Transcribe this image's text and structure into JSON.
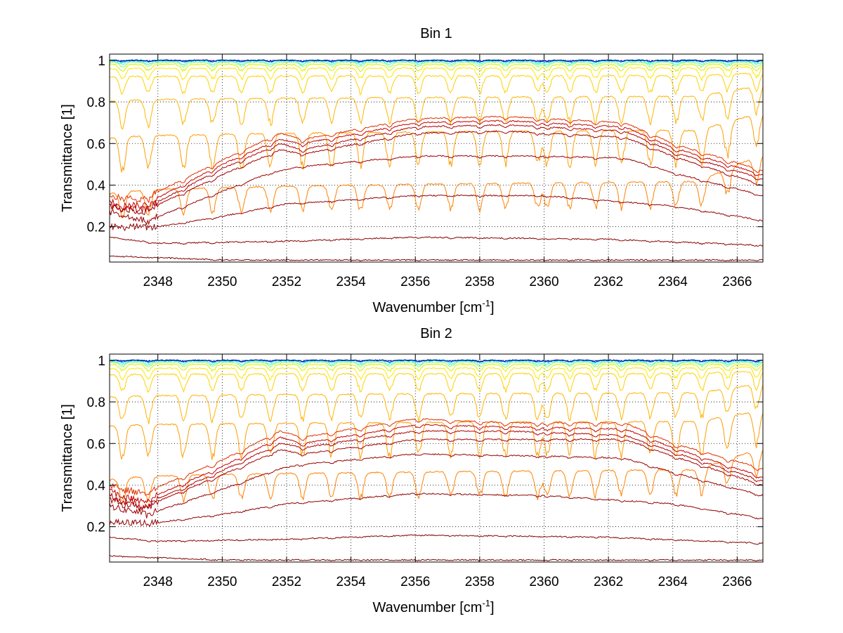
{
  "figure": {
    "background": "#ffffff",
    "panel_count": 2
  },
  "chart_data": [
    {
      "type": "line",
      "title": "Bin 1",
      "xlabel": "Wavenumber [cm",
      "xlabel_superscript": "-1",
      "xlabel_suffix": "]",
      "ylabel": "Transmittance [1]",
      "xlim": [
        2346.5,
        2366.8
      ],
      "ylim": [
        0.03,
        1.03
      ],
      "x_ticks": [
        2348,
        2350,
        2352,
        2354,
        2356,
        2358,
        2360,
        2362,
        2364,
        2366
      ],
      "x_tick_labels": [
        "2348",
        "2350",
        "2352",
        "2354",
        "2356",
        "2358",
        "2360",
        "2362",
        "2364",
        "2366"
      ],
      "y_ticks": [
        0.2,
        0.4,
        0.6,
        0.8,
        1
      ],
      "y_tick_labels": [
        "0.2",
        "0.4",
        "0.6",
        "0.8",
        "1"
      ],
      "grid": true,
      "grid_style": "dotted",
      "absorption_line_positions": [
        2346.9,
        2347.7,
        2348.8,
        2349.7,
        2350.6,
        2351.5,
        2352.5,
        2353.4,
        2354.3,
        2355.2,
        2356.1,
        2357.1,
        2358.0,
        2358.8,
        2359.8,
        2360.1,
        2360.8,
        2361.6,
        2362.4,
        2363.3,
        2364.1,
        2364.9,
        2365.7,
        2366.6
      ],
      "series_colormap": "jet (dark red = lowest transmittance, dark blue = highest)",
      "series_low_transmittance": [
        {
          "color": "#7f0000",
          "values": [
            [
              2346.5,
              0.06
            ],
            [
              2350,
              0.04
            ],
            [
              2356,
              0.04
            ],
            [
              2366.8,
              0.04
            ]
          ]
        },
        {
          "color": "#870000",
          "values": [
            [
              2346.5,
              0.15
            ],
            [
              2348,
              0.12
            ],
            [
              2352,
              0.13
            ],
            [
              2356,
              0.15
            ],
            [
              2362,
              0.14
            ],
            [
              2366.8,
              0.11
            ]
          ]
        },
        {
          "color": "#900000",
          "values": [
            [
              2346.5,
              0.2
            ],
            [
              2348,
              0.2
            ],
            [
              2350,
              0.25
            ],
            [
              2352,
              0.31
            ],
            [
              2356,
              0.35
            ],
            [
              2360,
              0.35
            ],
            [
              2364,
              0.3
            ],
            [
              2366.8,
              0.23
            ]
          ]
        },
        {
          "color": "#990000",
          "values": [
            [
              2346.5,
              0.27
            ],
            [
              2347.7,
              0.23
            ],
            [
              2350,
              0.37
            ],
            [
              2351.5,
              0.46
            ],
            [
              2352.5,
              0.49
            ],
            [
              2356,
              0.54
            ],
            [
              2360,
              0.54
            ],
            [
              2362.5,
              0.53
            ],
            [
              2364,
              0.46
            ],
            [
              2366.8,
              0.35
            ]
          ]
        },
        {
          "color": "#a30000",
          "values": [
            [
              2346.5,
              0.3
            ],
            [
              2347.5,
              0.27
            ],
            [
              2350,
              0.45
            ],
            [
              2351.8,
              0.57
            ],
            [
              2352.5,
              0.55
            ],
            [
              2356,
              0.65
            ],
            [
              2358.8,
              0.66
            ],
            [
              2362.5,
              0.63
            ],
            [
              2364,
              0.54
            ],
            [
              2366.8,
              0.4
            ]
          ]
        },
        {
          "color": "#b00000",
          "values": [
            [
              2346.5,
              0.3
            ],
            [
              2347.5,
              0.28
            ],
            [
              2350,
              0.48
            ],
            [
              2351.8,
              0.6
            ],
            [
              2352.5,
              0.57
            ],
            [
              2356,
              0.68
            ],
            [
              2358.8,
              0.69
            ],
            [
              2362.5,
              0.66
            ],
            [
              2364,
              0.56
            ],
            [
              2366.8,
              0.43
            ]
          ]
        },
        {
          "color": "#c50000",
          "values": [
            [
              2346.5,
              0.32
            ],
            [
              2347.5,
              0.3
            ],
            [
              2350,
              0.5
            ],
            [
              2351.8,
              0.62
            ],
            [
              2352.5,
              0.6
            ],
            [
              2356,
              0.7
            ],
            [
              2358.8,
              0.71
            ],
            [
              2362.5,
              0.68
            ],
            [
              2364,
              0.58
            ],
            [
              2366.8,
              0.45
            ]
          ]
        },
        {
          "color": "#e03000",
          "values": [
            [
              2346.5,
              0.35
            ],
            [
              2347.5,
              0.33
            ],
            [
              2350,
              0.52
            ],
            [
              2351.8,
              0.65
            ],
            [
              2352.5,
              0.62
            ],
            [
              2356,
              0.72
            ],
            [
              2358.8,
              0.73
            ],
            [
              2362.5,
              0.7
            ],
            [
              2364,
              0.6
            ],
            [
              2366.8,
              0.47
            ]
          ]
        }
      ],
      "series_high_transmittance": [
        {
          "color": "#ff8000",
          "baseline": 0.35,
          "depth": 0.12,
          "end_baseline": 0.55
        },
        {
          "color": "#ff9c00",
          "baseline": 0.62,
          "depth": 0.16,
          "end_baseline": 0.75
        },
        {
          "color": "#ffb400",
          "baseline": 0.8,
          "depth": 0.12,
          "end_baseline": 0.88
        },
        {
          "color": "#ffcf00",
          "baseline": 0.92,
          "depth": 0.08,
          "end_baseline": 0.94
        },
        {
          "color": "#ffe600",
          "baseline": 0.96,
          "depth": 0.05,
          "end_baseline": 0.97
        },
        {
          "color": "#d8f000",
          "baseline": 0.98,
          "depth": 0.03,
          "end_baseline": 0.98
        },
        {
          "color": "#90ff60",
          "baseline": 0.99,
          "depth": 0.02,
          "end_baseline": 0.99
        },
        {
          "color": "#40ffbf",
          "baseline": 0.995,
          "depth": 0.015,
          "end_baseline": 0.995
        },
        {
          "color": "#00d8ff",
          "baseline": 1.0,
          "depth": 0.01,
          "end_baseline": 1.0
        },
        {
          "color": "#0060ff",
          "baseline": 1.0,
          "depth": 0.006,
          "end_baseline": 1.0
        },
        {
          "color": "#00008f",
          "baseline": 1.0,
          "depth": 0.004,
          "end_baseline": 1.0
        }
      ]
    },
    {
      "type": "line",
      "title": "Bin 2",
      "xlabel": "Wavenumber [cm",
      "xlabel_superscript": "-1",
      "xlabel_suffix": "]",
      "ylabel": "Transmittance [1]",
      "xlim": [
        2346.5,
        2366.8
      ],
      "ylim": [
        0.03,
        1.03
      ],
      "x_ticks": [
        2348,
        2350,
        2352,
        2354,
        2356,
        2358,
        2360,
        2362,
        2364,
        2366
      ],
      "x_tick_labels": [
        "2348",
        "2350",
        "2352",
        "2354",
        "2356",
        "2358",
        "2360",
        "2362",
        "2364",
        "2366"
      ],
      "y_ticks": [
        0.2,
        0.4,
        0.6,
        0.8,
        1
      ],
      "y_tick_labels": [
        "0.2",
        "0.4",
        "0.6",
        "0.8",
        "1"
      ],
      "grid": true,
      "grid_style": "dotted",
      "absorption_line_positions": [
        2346.9,
        2347.7,
        2348.8,
        2349.7,
        2350.6,
        2351.5,
        2352.5,
        2353.4,
        2354.3,
        2355.2,
        2356.1,
        2357.1,
        2358.0,
        2358.8,
        2359.8,
        2360.1,
        2360.8,
        2361.6,
        2362.4,
        2363.3,
        2364.1,
        2364.9,
        2365.7,
        2366.6
      ],
      "series_colormap": "jet (dark red = lowest transmittance, dark blue = highest)",
      "series_low_transmittance": [
        {
          "color": "#7f0000",
          "values": [
            [
              2346.5,
              0.06
            ],
            [
              2350,
              0.04
            ],
            [
              2356,
              0.04
            ],
            [
              2366.8,
              0.04
            ]
          ]
        },
        {
          "color": "#870000",
          "values": [
            [
              2346.5,
              0.15
            ],
            [
              2348,
              0.13
            ],
            [
              2352,
              0.14
            ],
            [
              2356,
              0.16
            ],
            [
              2362,
              0.15
            ],
            [
              2366.8,
              0.12
            ]
          ]
        },
        {
          "color": "#900000",
          "values": [
            [
              2346.5,
              0.22
            ],
            [
              2348,
              0.22
            ],
            [
              2350,
              0.26
            ],
            [
              2352,
              0.31
            ],
            [
              2356,
              0.36
            ],
            [
              2360,
              0.35
            ],
            [
              2364,
              0.31
            ],
            [
              2366.8,
              0.24
            ]
          ]
        },
        {
          "color": "#990000",
          "values": [
            [
              2346.5,
              0.3
            ],
            [
              2347.7,
              0.26
            ],
            [
              2350,
              0.38
            ],
            [
              2351.8,
              0.48
            ],
            [
              2352.5,
              0.5
            ],
            [
              2356,
              0.55
            ],
            [
              2360,
              0.54
            ],
            [
              2362.5,
              0.53
            ],
            [
              2364,
              0.46
            ],
            [
              2366.8,
              0.35
            ]
          ]
        },
        {
          "color": "#a30000",
          "values": [
            [
              2346.5,
              0.33
            ],
            [
              2347.5,
              0.29
            ],
            [
              2350,
              0.45
            ],
            [
              2351.8,
              0.57
            ],
            [
              2352.5,
              0.55
            ],
            [
              2356,
              0.62
            ],
            [
              2358.8,
              0.62
            ],
            [
              2362.5,
              0.62
            ],
            [
              2364,
              0.54
            ],
            [
              2366.8,
              0.4
            ]
          ]
        },
        {
          "color": "#b00000",
          "values": [
            [
              2346.5,
              0.35
            ],
            [
              2347.5,
              0.3
            ],
            [
              2350,
              0.47
            ],
            [
              2351.8,
              0.6
            ],
            [
              2352.5,
              0.58
            ],
            [
              2356,
              0.66
            ],
            [
              2358.8,
              0.66
            ],
            [
              2362.5,
              0.64
            ],
            [
              2364,
              0.56
            ],
            [
              2366.8,
              0.42
            ]
          ]
        },
        {
          "color": "#c50000",
          "values": [
            [
              2346.5,
              0.37
            ],
            [
              2347.5,
              0.32
            ],
            [
              2350,
              0.49
            ],
            [
              2351.8,
              0.63
            ],
            [
              2352.5,
              0.6
            ],
            [
              2356,
              0.69
            ],
            [
              2358.8,
              0.68
            ],
            [
              2362.5,
              0.67
            ],
            [
              2364,
              0.58
            ],
            [
              2366.8,
              0.44
            ]
          ]
        },
        {
          "color": "#e03000",
          "values": [
            [
              2346.5,
              0.4
            ],
            [
              2347.5,
              0.36
            ],
            [
              2350,
              0.52
            ],
            [
              2351.8,
              0.66
            ],
            [
              2352.5,
              0.63
            ],
            [
              2356,
              0.72
            ],
            [
              2358.8,
              0.7
            ],
            [
              2362.5,
              0.7
            ],
            [
              2364,
              0.6
            ],
            [
              2366.8,
              0.48
            ]
          ]
        }
      ],
      "series_high_transmittance": [
        {
          "color": "#ff8000",
          "baseline": 0.42,
          "depth": 0.12,
          "end_baseline": 0.58
        },
        {
          "color": "#ff9c00",
          "baseline": 0.68,
          "depth": 0.16,
          "end_baseline": 0.76
        },
        {
          "color": "#ffb400",
          "baseline": 0.82,
          "depth": 0.12,
          "end_baseline": 0.89
        },
        {
          "color": "#ffcf00",
          "baseline": 0.93,
          "depth": 0.08,
          "end_baseline": 0.95
        },
        {
          "color": "#ffe600",
          "baseline": 0.96,
          "depth": 0.05,
          "end_baseline": 0.97
        },
        {
          "color": "#d8f000",
          "baseline": 0.98,
          "depth": 0.03,
          "end_baseline": 0.98
        },
        {
          "color": "#90ff60",
          "baseline": 0.99,
          "depth": 0.02,
          "end_baseline": 0.99
        },
        {
          "color": "#40ffbf",
          "baseline": 0.995,
          "depth": 0.015,
          "end_baseline": 0.995
        },
        {
          "color": "#00d8ff",
          "baseline": 1.0,
          "depth": 0.01,
          "end_baseline": 1.0
        },
        {
          "color": "#0060ff",
          "baseline": 1.0,
          "depth": 0.006,
          "end_baseline": 1.0
        },
        {
          "color": "#00008f",
          "baseline": 1.0,
          "depth": 0.004,
          "end_baseline": 1.0
        }
      ]
    }
  ]
}
